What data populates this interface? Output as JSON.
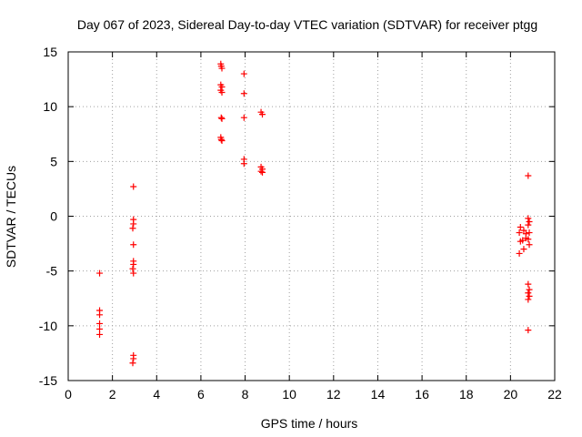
{
  "chart_data": {
    "type": "scatter",
    "title": "Day 067 of 2023, Sidereal Day-to-day VTEC variation (SDTVAR) for receiver ptgg",
    "xlabel": "GPS time / hours",
    "ylabel": "SDTVAR / TECUs",
    "xlim": [
      0,
      22
    ],
    "ylim": [
      -15,
      15
    ],
    "xticks": [
      0,
      2,
      4,
      6,
      8,
      10,
      12,
      14,
      16,
      18,
      20,
      22
    ],
    "yticks": [
      -15,
      -10,
      -5,
      0,
      5,
      10,
      15
    ],
    "grid": true,
    "marker": "+",
    "color": "#ff0000",
    "points": [
      [
        1.42,
        -5.2
      ],
      [
        1.42,
        -8.6
      ],
      [
        1.42,
        -9.0
      ],
      [
        1.42,
        -9.8
      ],
      [
        1.42,
        -10.3
      ],
      [
        1.42,
        -10.8
      ],
      [
        2.95,
        2.7
      ],
      [
        2.95,
        -0.3
      ],
      [
        2.95,
        -0.7
      ],
      [
        2.92,
        -1.1
      ],
      [
        2.95,
        -2.6
      ],
      [
        2.95,
        -4.1
      ],
      [
        2.95,
        -4.4
      ],
      [
        2.92,
        -4.8
      ],
      [
        2.95,
        -5.2
      ],
      [
        2.95,
        -12.7
      ],
      [
        2.95,
        -13.0
      ],
      [
        2.92,
        -13.4
      ],
      [
        6.9,
        13.9
      ],
      [
        6.92,
        13.7
      ],
      [
        6.95,
        13.5
      ],
      [
        6.9,
        12.0
      ],
      [
        6.95,
        11.8
      ],
      [
        6.9,
        11.5
      ],
      [
        6.95,
        11.3
      ],
      [
        6.92,
        9.0
      ],
      [
        6.95,
        8.9
      ],
      [
        6.9,
        7.2
      ],
      [
        6.92,
        7.0
      ],
      [
        6.95,
        6.9
      ],
      [
        7.95,
        13.0
      ],
      [
        7.95,
        11.2
      ],
      [
        7.95,
        9.0
      ],
      [
        7.95,
        5.2
      ],
      [
        7.95,
        4.8
      ],
      [
        8.72,
        9.5
      ],
      [
        8.78,
        9.3
      ],
      [
        8.72,
        4.5
      ],
      [
        8.78,
        4.3
      ],
      [
        8.72,
        4.1
      ],
      [
        8.78,
        4.0
      ],
      [
        20.45,
        -1.0
      ],
      [
        20.4,
        -1.5
      ],
      [
        20.45,
        -2.3
      ],
      [
        20.4,
        -3.4
      ],
      [
        20.6,
        -1.3
      ],
      [
        20.55,
        -2.2
      ],
      [
        20.6,
        -3.0
      ],
      [
        20.7,
        -1.6
      ],
      [
        20.7,
        -2.0
      ],
      [
        20.8,
        3.7
      ],
      [
        20.8,
        -0.2
      ],
      [
        20.85,
        -0.5
      ],
      [
        20.8,
        -0.8
      ],
      [
        20.85,
        -1.5
      ],
      [
        20.8,
        -2.1
      ],
      [
        20.85,
        -2.6
      ],
      [
        20.8,
        -6.2
      ],
      [
        20.85,
        -6.7
      ],
      [
        20.8,
        -7.0
      ],
      [
        20.85,
        -7.3
      ],
      [
        20.8,
        -7.6
      ],
      [
        20.8,
        -10.4
      ]
    ]
  }
}
